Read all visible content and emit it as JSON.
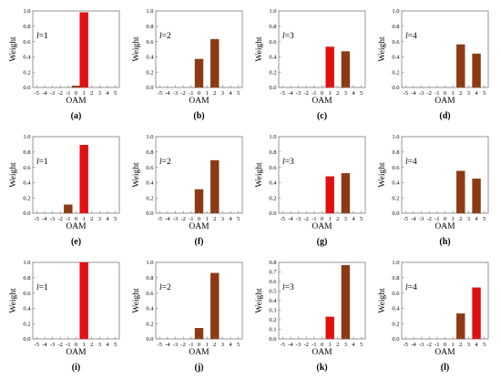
{
  "figure": {
    "colors": {
      "bar": "#e01010",
      "bar_dark": "#8b3a14",
      "axis": "#7a7a7a"
    }
  },
  "chart_data": [
    {
      "id": "a",
      "panel_label": "(a)",
      "l_prefix": "l",
      "l_value": "=1",
      "type": "bar",
      "xlabel": "OAM",
      "ylabel": "Weight",
      "ylim": [
        0,
        1.0
      ],
      "yticks": [
        "0.0",
        "0.2",
        "0.4",
        "0.6",
        "0.8",
        "1.0"
      ],
      "xticks": [
        "-5",
        "-4",
        "-3",
        "-2",
        "-1",
        "0",
        "1",
        "2",
        "3",
        "4",
        "5"
      ],
      "bars": [
        {
          "x": 0,
          "value": 0.02,
          "color": "dark"
        },
        {
          "x": 1,
          "value": 0.98,
          "color": "red"
        }
      ]
    },
    {
      "id": "b",
      "panel_label": "(b)",
      "l_prefix": "l",
      "l_value": "=2",
      "type": "bar",
      "xlabel": "OAM",
      "ylabel": "Weight",
      "ylim": [
        0,
        1.0
      ],
      "yticks": [
        "0.0",
        "0.2",
        "0.4",
        "0.6",
        "0.8",
        "1.0"
      ],
      "xticks": [
        "-5",
        "-4",
        "-3",
        "-2",
        "-1",
        "0",
        "1",
        "2",
        "3",
        "4",
        "5"
      ],
      "bars": [
        {
          "x": 0,
          "value": 0.37,
          "color": "dark"
        },
        {
          "x": 2,
          "value": 0.63,
          "color": "dark"
        }
      ]
    },
    {
      "id": "c",
      "panel_label": "(c)",
      "l_prefix": "l",
      "l_value": "=3",
      "type": "bar",
      "xlabel": "OAM",
      "ylabel": "Weight",
      "ylim": [
        0,
        1.0
      ],
      "yticks": [
        "0.0",
        "0.2",
        "0.4",
        "0.6",
        "0.8",
        "1.0"
      ],
      "xticks": [
        "-5",
        "-4",
        "-3",
        "-2",
        "-1",
        "0",
        "1",
        "2",
        "3",
        "4",
        "5"
      ],
      "bars": [
        {
          "x": 1,
          "value": 0.53,
          "color": "red"
        },
        {
          "x": 3,
          "value": 0.47,
          "color": "dark"
        }
      ]
    },
    {
      "id": "d",
      "panel_label": "(d)",
      "l_prefix": "l",
      "l_value": "=4",
      "type": "bar",
      "xlabel": "OAM",
      "ylabel": "Weight",
      "ylim": [
        0,
        1.0
      ],
      "yticks": [
        "0.0",
        "0.2",
        "0.4",
        "0.6",
        "0.8",
        "1.0"
      ],
      "xticks": [
        "-5",
        "-4",
        "-3",
        "-2",
        "-1",
        "0",
        "1",
        "2",
        "3",
        "4",
        "5"
      ],
      "bars": [
        {
          "x": 2,
          "value": 0.56,
          "color": "dark"
        },
        {
          "x": 4,
          "value": 0.44,
          "color": "dark"
        }
      ]
    },
    {
      "id": "e",
      "panel_label": "(e)",
      "l_prefix": "l",
      "l_value": "=1",
      "type": "bar",
      "xlabel": "OAM",
      "ylabel": "Weight",
      "ylim": [
        0,
        1.0
      ],
      "yticks": [
        "0.0",
        "0.2",
        "0.4",
        "0.6",
        "0.8",
        "1.0"
      ],
      "xticks": [
        "-5",
        "-4",
        "-3",
        "-2",
        "-1",
        "0",
        "1",
        "2",
        "3",
        "4",
        "5"
      ],
      "bars": [
        {
          "x": -1,
          "value": 0.11,
          "color": "dark"
        },
        {
          "x": 1,
          "value": 0.89,
          "color": "red"
        }
      ]
    },
    {
      "id": "f",
      "panel_label": "(f)",
      "l_prefix": "l",
      "l_value": "=2",
      "type": "bar",
      "xlabel": "OAM",
      "ylabel": "Weight",
      "ylim": [
        0,
        1.0
      ],
      "yticks": [
        "0.0",
        "0.2",
        "0.4",
        "0.6",
        "0.8",
        "1.0"
      ],
      "xticks": [
        "-5",
        "-4",
        "-3",
        "-2",
        "-1",
        "0",
        "1",
        "2",
        "3",
        "4",
        "5"
      ],
      "bars": [
        {
          "x": 0,
          "value": 0.31,
          "color": "dark"
        },
        {
          "x": 2,
          "value": 0.69,
          "color": "dark"
        }
      ]
    },
    {
      "id": "g",
      "panel_label": "(g)",
      "l_prefix": "l",
      "l_value": "=3",
      "type": "bar",
      "xlabel": "OAM",
      "ylabel": "Weight",
      "ylim": [
        0,
        1.0
      ],
      "yticks": [
        "0.0",
        "0.2",
        "0.4",
        "0.6",
        "0.8",
        "1.0"
      ],
      "xticks": [
        "-5",
        "-4",
        "-3",
        "-2",
        "-1",
        "0",
        "1",
        "2",
        "3",
        "4",
        "5"
      ],
      "bars": [
        {
          "x": 1,
          "value": 0.48,
          "color": "red"
        },
        {
          "x": 3,
          "value": 0.52,
          "color": "dark"
        }
      ]
    },
    {
      "id": "h",
      "panel_label": "(h)",
      "l_prefix": "l",
      "l_value": "=4",
      "type": "bar",
      "xlabel": "OAM",
      "ylabel": "Weight",
      "ylim": [
        0,
        1.0
      ],
      "yticks": [
        "0.0",
        "0.2",
        "0.4",
        "0.6",
        "0.8",
        "1.0"
      ],
      "xticks": [
        "-5",
        "-4",
        "-3",
        "-2",
        "-1",
        "0",
        "1",
        "2",
        "3",
        "4",
        "5"
      ],
      "bars": [
        {
          "x": 2,
          "value": 0.55,
          "color": "dark"
        },
        {
          "x": 4,
          "value": 0.45,
          "color": "dark"
        }
      ]
    },
    {
      "id": "i",
      "panel_label": "(i)",
      "l_prefix": "l",
      "l_value": "=1",
      "type": "bar",
      "xlabel": "OAM",
      "ylabel": "Weight",
      "ylim": [
        0,
        1.0
      ],
      "yticks": [
        "0.0",
        "0.2",
        "0.4",
        "0.6",
        "0.8",
        "1.0"
      ],
      "xticks": [
        "-5",
        "-4",
        "-3",
        "-2",
        "-1",
        "0",
        "1",
        "2",
        "3",
        "4",
        "5"
      ],
      "bars": [
        {
          "x": 1,
          "value": 1.0,
          "color": "red"
        }
      ]
    },
    {
      "id": "j",
      "panel_label": "(j)",
      "l_prefix": "l",
      "l_value": "=2",
      "type": "bar",
      "xlabel": "OAM",
      "ylabel": "Weight",
      "ylim": [
        0,
        1.0
      ],
      "yticks": [
        "0.0",
        "0.2",
        "0.4",
        "0.6",
        "0.8",
        "1.0"
      ],
      "xticks": [
        "-5",
        "-4",
        "-3",
        "-2",
        "-1",
        "0",
        "1",
        "2",
        "3",
        "4",
        "5"
      ],
      "bars": [
        {
          "x": 0,
          "value": 0.14,
          "color": "dark"
        },
        {
          "x": 2,
          "value": 0.86,
          "color": "dark"
        }
      ]
    },
    {
      "id": "k",
      "panel_label": "(k)",
      "l_prefix": "l",
      "l_value": "=3",
      "type": "bar",
      "xlabel": "OAM",
      "ylabel": "Weight",
      "ylim": [
        0,
        0.8
      ],
      "yticks": [
        "0.0",
        "0.1",
        "0.2",
        "0.3",
        "0.4",
        "0.5",
        "0.6",
        "0.7",
        "0.8"
      ],
      "xticks": [
        "-5",
        "-4",
        "-3",
        "-2",
        "-1",
        "0",
        "1",
        "2",
        "3",
        "4",
        "5"
      ],
      "bars": [
        {
          "x": 1,
          "value": 0.23,
          "color": "red"
        },
        {
          "x": 3,
          "value": 0.77,
          "color": "dark"
        }
      ]
    },
    {
      "id": "l",
      "panel_label": "(l)",
      "l_prefix": "l",
      "l_value": "=4",
      "type": "bar",
      "xlabel": "OAM",
      "ylabel": "Weight",
      "ylim": [
        0,
        1.0
      ],
      "yticks": [
        "0.0",
        "0.2",
        "0.4",
        "0.6",
        "0.8",
        "1.0"
      ],
      "xticks": [
        "-5",
        "-4",
        "-3",
        "-2",
        "-1",
        "0",
        "1",
        "2",
        "3",
        "4",
        "5"
      ],
      "bars": [
        {
          "x": 2,
          "value": 0.33,
          "color": "dark"
        },
        {
          "x": 4,
          "value": 0.67,
          "color": "red"
        }
      ]
    }
  ]
}
